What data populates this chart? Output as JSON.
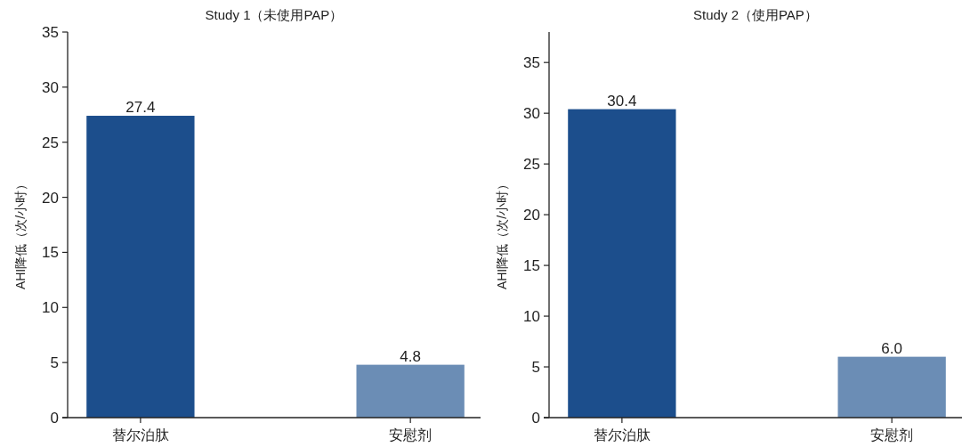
{
  "chart_data": [
    {
      "type": "bar",
      "title": "Study 1（未使用PAP）",
      "ylabel": "AHI降低（次/小时）",
      "categories": [
        "替尔泊肽",
        "安慰剂"
      ],
      "values": [
        27.4,
        4.8
      ],
      "colors": [
        "#1c4e8c",
        "#6b8db5"
      ],
      "value_labels": [
        "27.4",
        "4.8"
      ],
      "ylim": [
        0,
        35
      ],
      "yticks": [
        0,
        5,
        10,
        15,
        20,
        25,
        30,
        35
      ]
    },
    {
      "type": "bar",
      "title": "Study 2（使用PAP）",
      "ylabel": "AHI降低（次/小时）",
      "categories": [
        "替尔泊肽",
        "安慰剂"
      ],
      "values": [
        30.4,
        6.0
      ],
      "colors": [
        "#1c4e8c",
        "#6b8db5"
      ],
      "value_labels": [
        "30.4",
        "6.0"
      ],
      "ylim": [
        0,
        38
      ],
      "yticks": [
        0,
        5,
        10,
        15,
        20,
        25,
        30,
        35
      ]
    }
  ]
}
